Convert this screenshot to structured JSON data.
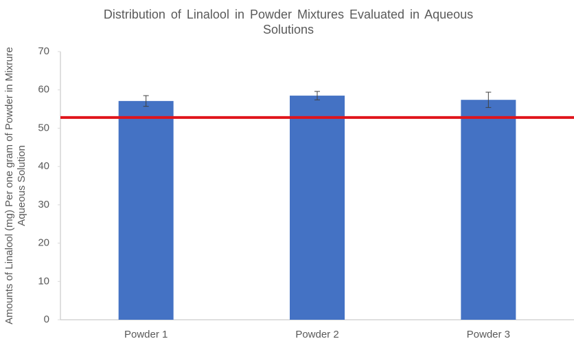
{
  "chart_data": {
    "type": "bar",
    "title": "Distribution of Linalool in Powder Mixtures Evaluated in Aqueous Solutions",
    "y_label": "Amounts of Linalool (mg) Per one gram of Powder in Mixrure Aqueous Solution",
    "categories": [
      "Powder 1",
      "Powder 2",
      "Powder 3"
    ],
    "values": [
      57.1,
      58.5,
      57.4
    ],
    "errors": [
      1.4,
      1.1,
      2.0
    ],
    "color": "#4472c4",
    "ylim": [
      0,
      70
    ],
    "yticks": [
      0,
      10,
      20,
      30,
      40,
      50,
      60,
      70
    ],
    "grid": false,
    "reference_line": {
      "value": 52.8,
      "color": "#e0151b"
    }
  }
}
